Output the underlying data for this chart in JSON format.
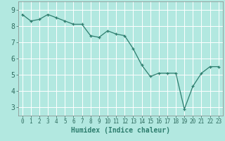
{
  "x": [
    0,
    1,
    2,
    3,
    4,
    5,
    6,
    7,
    8,
    9,
    10,
    11,
    12,
    13,
    14,
    15,
    16,
    17,
    18,
    19,
    20,
    21,
    22,
    23
  ],
  "y": [
    8.7,
    8.3,
    8.4,
    8.7,
    8.5,
    8.3,
    8.1,
    8.1,
    7.4,
    7.3,
    7.7,
    7.5,
    7.4,
    6.6,
    5.6,
    4.9,
    5.1,
    5.1,
    5.1,
    2.9,
    4.3,
    5.1,
    5.5,
    5.5
  ],
  "line_color": "#2e7d6e",
  "marker_color": "#2e7d6e",
  "bg_color": "#b2e8e0",
  "grid_color": "#ffffff",
  "xlabel": "Humidex (Indice chaleur)",
  "ylim": [
    2.5,
    9.5
  ],
  "xlim": [
    -0.5,
    23.5
  ],
  "yticks": [
    3,
    4,
    5,
    6,
    7,
    8,
    9
  ],
  "xticks": [
    0,
    1,
    2,
    3,
    4,
    5,
    6,
    7,
    8,
    9,
    10,
    11,
    12,
    13,
    14,
    15,
    16,
    17,
    18,
    19,
    20,
    21,
    22,
    23
  ],
  "xlabel_fontsize": 7,
  "ytick_fontsize": 7,
  "xtick_fontsize": 5.5
}
